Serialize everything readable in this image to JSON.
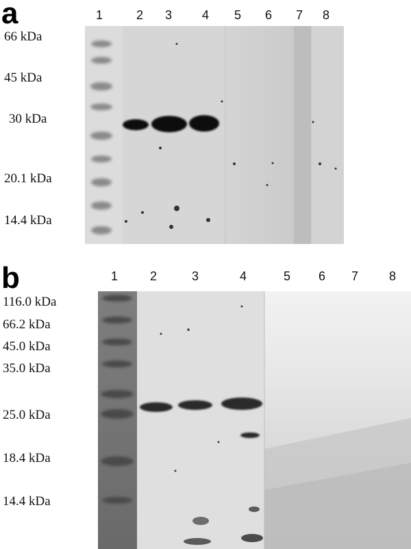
{
  "panels": [
    {
      "label": "a",
      "lanes": [
        "1",
        "2",
        "3",
        "4",
        "5",
        "6",
        "7",
        "8"
      ],
      "markers": [
        "66 kDa",
        "45 kDa",
        "30 kDa",
        "20.1 kDa",
        "14.4 kDa"
      ]
    },
    {
      "label": "b",
      "lanes": [
        "1",
        "2",
        "3",
        "4",
        "5",
        "6",
        "7",
        "8"
      ],
      "markers": [
        "116.0 kDa",
        "66.2 kDa",
        "45.0 kDa",
        "35.0 kDa",
        "25.0 kDa",
        "18.4 kDa",
        "14.4 kDa"
      ]
    }
  ]
}
